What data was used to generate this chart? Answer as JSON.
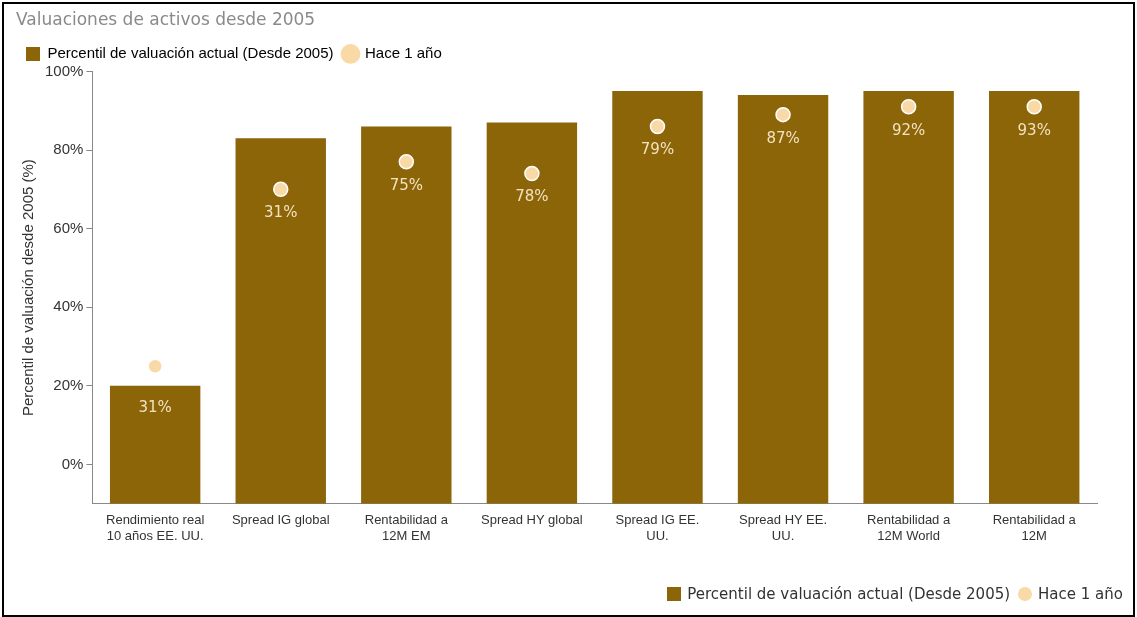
{
  "chart_data": {
    "type": "bar",
    "title": "Valuaciones de activos desde 2005",
    "ylabel": "Percentil de valuación desde 2005 (%)",
    "categories": [
      "Rendimiento real 10 años EE. UU.",
      "Spread IG global",
      "Rentabilidad a 12M EM",
      "Spread HY global",
      "Spread IG EE. UU.",
      "Spread HY EE. UU.",
      "Rentabilidad a 12M World",
      "Rentabilidad a 12M"
    ],
    "ylim": [
      -10,
      100
    ],
    "yticks": [
      {
        "value": 0,
        "label": "0%"
      },
      {
        "value": 20,
        "label": "20%"
      },
      {
        "value": 40,
        "label": "40%"
      },
      {
        "value": 60,
        "label": "60%"
      },
      {
        "value": 80,
        "label": "80%"
      },
      {
        "value": 100,
        "label": "100%"
      }
    ],
    "grid": false,
    "legend": "top left",
    "annotations": [
      "31%",
      "31%",
      "75%",
      "78%",
      "79%",
      "87%",
      "92%",
      "93%"
    ],
    "series": [
      {
        "name": "Percentil de valuación actual (Desde 2005)",
        "color": "#8b6508",
        "base": [
          -10,
          -10,
          -10,
          -10,
          -10,
          -10,
          -10,
          -10
        ],
        "values": [
          30,
          93,
          96,
          97,
          105,
          104,
          105,
          105
        ]
      },
      {
        "name": "Hace 1 año",
        "type": "scatter",
        "color": "#f9d9a6",
        "marker": "circle",
        "x": [
          "Rendimiento real 10 años EE. UU.",
          "Spread IG global",
          "Rentabilidad a 12M EM",
          "Spread HY global",
          "Spread IG EE. UU.",
          "Spread HY EE. UU.",
          "Rentabilidad a 12M World",
          "Rentabilidad a 12M"
        ],
        "values": [
          25,
          70,
          77,
          74,
          86,
          89,
          91,
          91
        ]
      }
    ]
  }
}
